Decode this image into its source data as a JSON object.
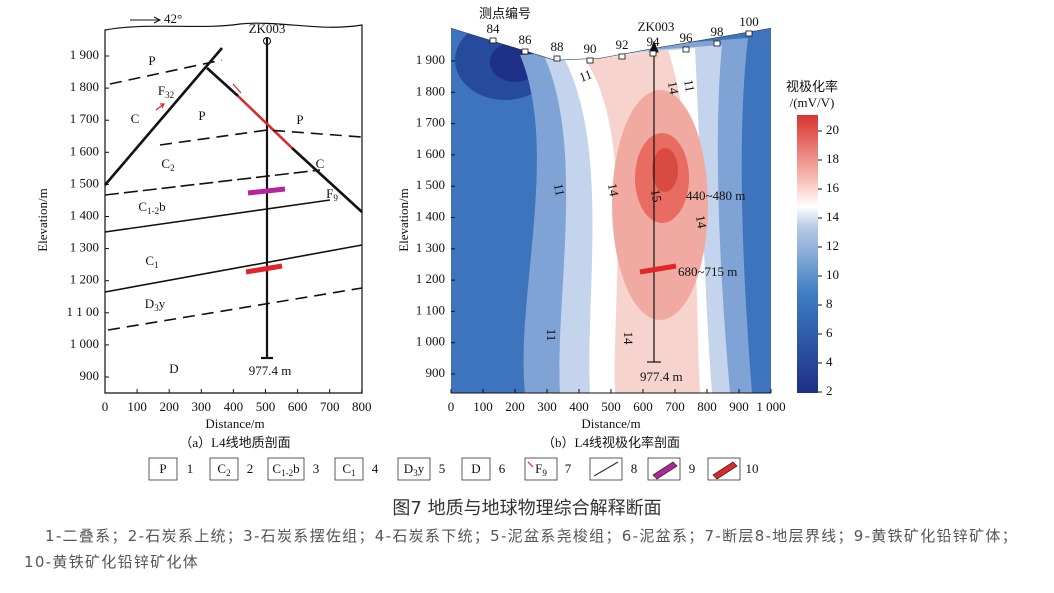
{
  "panel_a": {
    "compass": "42°",
    "borehole": "ZK003",
    "depth_label": "977.4 m",
    "y_label": "Elevation/m",
    "x_label": "Distance/m",
    "yticks": [
      {
        "value": 1900,
        "label": "1 900"
      },
      {
        "value": 1800,
        "label": "1 800"
      },
      {
        "value": 1700,
        "label": "1 700"
      },
      {
        "value": 1600,
        "label": "1 600"
      },
      {
        "value": 1500,
        "label": "1 500"
      },
      {
        "value": 1400,
        "label": "1 400"
      },
      {
        "value": 1300,
        "label": "1 300"
      },
      {
        "value": 1200,
        "label": "1 200"
      },
      {
        "value": 1100,
        "label": "1 1 00"
      },
      {
        "value": 1000,
        "label": "1 000"
      },
      900
    ],
    "xticks": [
      0,
      100,
      200,
      300,
      400,
      500,
      600,
      700,
      800
    ],
    "units": [
      {
        "text": "P"
      },
      {
        "text": "F",
        "sub": "32"
      },
      {
        "text": "C"
      },
      {
        "text": "P"
      },
      {
        "text": "P"
      },
      {
        "text": "C",
        "sub": "2"
      },
      {
        "text": "C"
      },
      {
        "text": "F",
        "sub": "9"
      },
      {
        "text": "C",
        "sub": "1-2",
        "tail": "b"
      },
      {
        "text": "C",
        "sub": "1"
      },
      {
        "text": "D",
        "sub": "3",
        "tail": "y"
      },
      {
        "text": "D"
      }
    ],
    "caption": "（a）L4线地质剖面"
  },
  "panel_b": {
    "station_title": "测点编号",
    "stations": [
      84,
      86,
      88,
      90,
      92,
      94,
      96,
      98,
      100
    ],
    "borehole": "ZK003",
    "y_label": "Elevation/m",
    "x_label": "Distance/m",
    "yticks": [
      {
        "value": 1900,
        "label": "1 900"
      },
      {
        "value": 1800,
        "label": "1 800"
      },
      {
        "value": 1700,
        "label": "1 700"
      },
      {
        "value": 1600,
        "label": "1 600"
      },
      {
        "value": 1500,
        "label": "1 500"
      },
      {
        "value": 1400,
        "label": "1 400"
      },
      {
        "value": 1300,
        "label": "1 300"
      },
      {
        "value": 1200,
        "label": "1 200"
      },
      {
        "value": 1100,
        "label": "1 100"
      },
      {
        "value": 1000,
        "label": "1 000"
      },
      900
    ],
    "xticks": [
      0,
      100,
      200,
      300,
      400,
      500,
      600,
      700,
      800,
      900,
      {
        "value": 1000,
        "label": "1 000"
      }
    ],
    "contour_labels": [
      11,
      14,
      11,
      11,
      14,
      15,
      14,
      11,
      14
    ],
    "annotations": [
      "440~480 m",
      "680~715 m",
      "977.4 m"
    ],
    "colorbar_title": [
      "视极化率",
      "/(mV/V)"
    ],
    "colorbar_ticks": [
      2,
      4,
      6,
      8,
      10,
      12,
      14,
      16,
      18,
      20
    ],
    "caption": "（b）L4线视极化率剖面"
  },
  "legend": [
    {
      "symbol": {
        "text": "P"
      },
      "number": 1
    },
    {
      "symbol": {
        "text": "C",
        "sub": "2"
      },
      "number": 2
    },
    {
      "symbol": {
        "text": "C",
        "sub": "1-2",
        "tail": "b"
      },
      "number": 3
    },
    {
      "symbol": {
        "text": "C",
        "sub": "1"
      },
      "number": 4
    },
    {
      "symbol": {
        "text": "D",
        "sub": "3",
        "tail": "y"
      },
      "number": 5
    },
    {
      "symbol": {
        "text": "D"
      },
      "number": 6
    },
    {
      "symbol": {
        "text": "F",
        "sub": "9"
      },
      "number": 7
    },
    {
      "number": 8
    },
    {
      "number": 9
    },
    {
      "number": 10
    }
  ],
  "caption": "图7 地质与地球物理综合解释断面",
  "note": "1-二叠系；2-石炭系上统；3-石炭系摆佐组；4-石炭系下统；5-泥盆系尧梭组；6-泥盆系；7-断层8-地层界线；9-黄铁矿化铅锌矿体；10-黄铁矿化铅锌矿化体"
}
